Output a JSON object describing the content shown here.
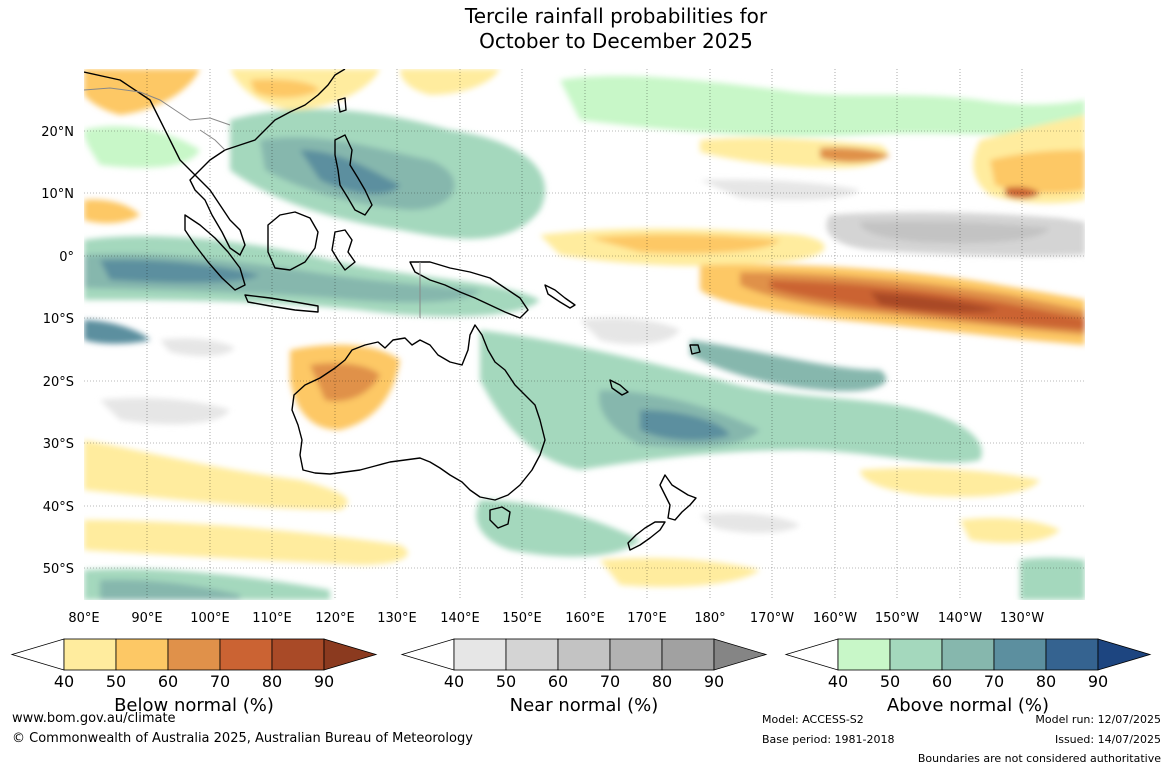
{
  "title": {
    "line1": "Tercile rainfall probabilities for",
    "line2": "October to December 2025"
  },
  "map": {
    "lat_labels": [
      "20°N",
      "10°N",
      "0°",
      "10°S",
      "20°S",
      "30°S",
      "40°S",
      "50°S"
    ],
    "lon_labels": [
      "80°E",
      "90°E",
      "100°E",
      "110°E",
      "120°E",
      "130°E",
      "140°E",
      "150°E",
      "160°E",
      "170°E",
      "180°",
      "170°W",
      "160°W",
      "150°W",
      "140°W",
      "130°W"
    ],
    "gridlines": "dotted"
  },
  "colorbars": [
    {
      "id": "below",
      "label": "Below normal (%)",
      "ticks": [
        "40",
        "50",
        "60",
        "70",
        "80",
        "90"
      ],
      "colors": [
        "#ffffff",
        "#ffec9e",
        "#fdc865",
        "#e0914a",
        "#cb6333",
        "#a94a27",
        "#8b3a1f"
      ]
    },
    {
      "id": "near",
      "label": "Near normal (%)",
      "ticks": [
        "40",
        "50",
        "60",
        "70",
        "80",
        "90"
      ],
      "colors": [
        "#ffffff",
        "#e6e6e6",
        "#d4d4d4",
        "#c3c3c3",
        "#b2b2b2",
        "#a1a1a1",
        "#858585"
      ]
    },
    {
      "id": "above",
      "label": "Above normal (%)",
      "ticks": [
        "40",
        "50",
        "60",
        "70",
        "80",
        "90"
      ],
      "colors": [
        "#ffffff",
        "#c8f7c8",
        "#a4d8bd",
        "#86b7ad",
        "#5c8f9f",
        "#356390",
        "#1d4580"
      ]
    }
  ],
  "footer": {
    "website": "www.bom.gov.au/climate",
    "copyright": "© Commonwealth of Australia 2025, Australian Bureau of Meteorology",
    "model": "Model: ACCESS-S2",
    "base_period": "Base period: 1981-2018",
    "model_run": "Model run: 12/07/2025",
    "issued": "Issued: 14/07/2025",
    "boundaries": "Boundaries are not considered authoritative"
  }
}
